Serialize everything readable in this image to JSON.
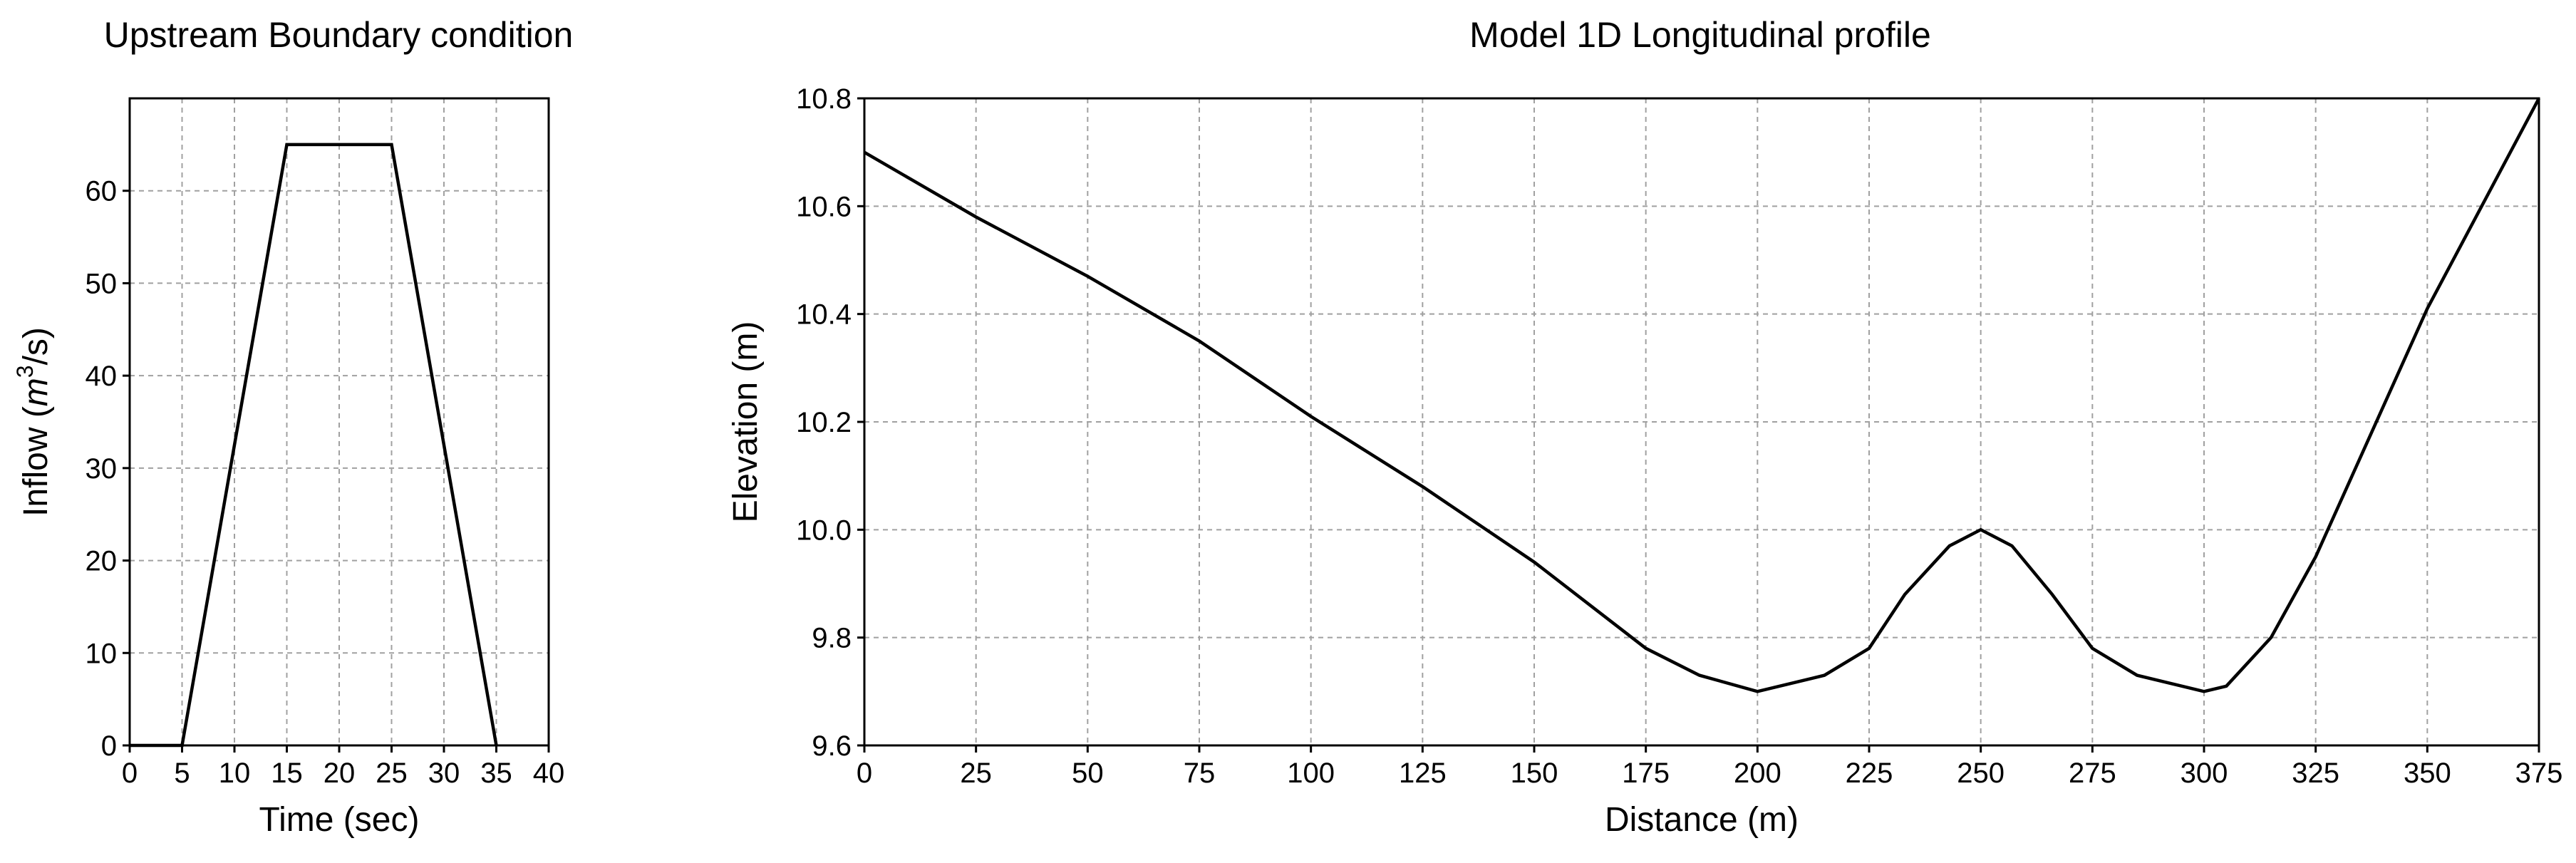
{
  "chart_data": [
    {
      "type": "line",
      "title": "Upstream Boundary condition",
      "xlabel": "Time (sec)",
      "ylabel_prefix": "Inflow (",
      "ylabel_math": "m",
      "ylabel_sup": "3",
      "ylabel_suffix": "/s)",
      "xlim": [
        0,
        40
      ],
      "ylim": [
        0,
        70
      ],
      "xticks": [
        0,
        5,
        10,
        15,
        20,
        25,
        30,
        35,
        40
      ],
      "yticks": [
        0,
        10,
        20,
        30,
        40,
        50,
        60
      ],
      "grid": true,
      "x": [
        0,
        5,
        15,
        25,
        35
      ],
      "y": [
        0,
        0,
        65,
        65,
        0
      ]
    },
    {
      "type": "line",
      "title": "Model 1D Longitudinal profile",
      "xlabel": "Distance (m)",
      "ylabel": "Elevation (m)",
      "xlim": [
        0,
        375
      ],
      "ylim": [
        9.6,
        10.8
      ],
      "xticks": [
        0,
        25,
        50,
        75,
        100,
        125,
        150,
        175,
        200,
        225,
        250,
        275,
        300,
        325,
        350,
        375
      ],
      "yticks": [
        "9.6",
        "9.8",
        "10.0",
        "10.2",
        "10.4",
        "10.6",
        "10.8"
      ],
      "grid": true,
      "x": [
        0,
        25,
        50,
        75,
        100,
        125,
        150,
        175,
        187,
        200,
        215,
        225,
        233,
        243,
        250,
        257,
        266,
        275,
        285,
        300,
        305,
        315,
        325,
        350,
        375
      ],
      "y": [
        10.7,
        10.58,
        10.47,
        10.35,
        10.21,
        10.08,
        9.94,
        9.78,
        9.73,
        9.7,
        9.73,
        9.78,
        9.88,
        9.97,
        10.0,
        9.97,
        9.88,
        9.78,
        9.73,
        9.7,
        9.71,
        9.8,
        9.95,
        10.41,
        10.8
      ]
    }
  ]
}
